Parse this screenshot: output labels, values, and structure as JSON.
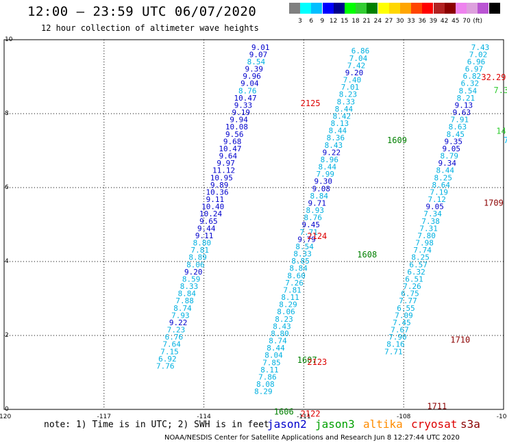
{
  "title": "12:00 – 23:59 UTC 06/07/2020",
  "subtitle": "12 hour collection of altimeter wave heights",
  "scale": {
    "colors": [
      "#808080",
      "#00ffff",
      "#00bfff",
      "#0000ff",
      "#00008b",
      "#00ff00",
      "#32cd32",
      "#008000",
      "#ffff00",
      "#ffd700",
      "#ffa500",
      "#ff4500",
      "#ff0000",
      "#b22222",
      "#8b0000",
      "#ee82ee",
      "#dda0dd",
      "#ba55d3",
      "#000000"
    ],
    "labels": [
      "3",
      "6",
      "9",
      "12",
      "15",
      "18",
      "21",
      "24",
      "27",
      "30",
      "33",
      "36",
      "39",
      "42",
      "45",
      "70",
      "(ft)"
    ],
    "unit": "(ft)"
  },
  "x_ticks": [
    "-120",
    "-117",
    "-114",
    "-111",
    "-108",
    "-105"
  ],
  "y_ticks": [
    "0",
    "2",
    "4",
    "6",
    "8",
    "10"
  ],
  "note": "note: 1) Time is in UTC; 2) SWH is in feet",
  "satellites": [
    {
      "name": "jason2",
      "color": "#0000cc"
    },
    {
      "name": "jason3",
      "color": "#00a000"
    },
    {
      "name": "altika",
      "color": "#ff8c00"
    },
    {
      "name": "cryosat",
      "color": "#dd0000"
    },
    {
      "name": "s3a",
      "color": "#8b0000"
    }
  ],
  "footer": "NOAA/NESDIS Center for Satellite Applications and Research   Jun  8 12:27:44 UTC 2020",
  "tracks": [
    {
      "lon": -112.3,
      "lat_top": 9.8,
      "lat_step": -0.196,
      "values": [
        "9.01",
        "9.07",
        "8.54",
        "9.39",
        "9.96",
        "9.04",
        "8.76",
        "10.47",
        "9.33",
        "9.19",
        "9.94",
        "10.08",
        "9.56",
        "9.68",
        "10.47",
        "9.64",
        "9.97",
        "11.12",
        "10.95",
        "9.89",
        "10.36",
        "9.11",
        "10.40",
        "10.24",
        "9.65",
        "9.44",
        "9.11",
        "8.80",
        "7.81",
        "8.89",
        "8.06",
        "9.20",
        "8.59",
        "8.33",
        "8.84",
        "7.88",
        "8.74",
        "7.93",
        "9.22",
        "7.23",
        "6.76",
        "7.64",
        "7.15",
        "6.92",
        "7.76"
      ],
      "lon_step": -0.065
    },
    {
      "lon": -109.3,
      "lat_top": 9.7,
      "lat_step": -0.196,
      "values": [
        "6.86",
        "7.04",
        "7.42",
        "9.20",
        "7.40",
        "7.01",
        "8.23",
        "8.33",
        "8.44",
        "8.42",
        "8.13",
        "8.44",
        "8.36",
        "8.43",
        "9.22",
        "8.96",
        "8.44",
        "7.99",
        "9.30",
        "9.08",
        "8.84",
        "9.71",
        "8.93",
        "8.76",
        "9.45",
        "7.71",
        "9.79",
        "8.54",
        "8.33",
        "8.85",
        "8.84",
        "8.60",
        "7.26",
        "7.81",
        "8.11",
        "8.29",
        "8.06",
        "8.23",
        "8.43",
        "8.80",
        "8.74",
        "8.44",
        "8.04",
        "7.85",
        "8.11",
        "7.86",
        "8.08",
        "8.29"
      ],
      "lon_step": -0.062
    },
    {
      "lon": -105.7,
      "lat_top": 9.8,
      "lat_step": -0.196,
      "values": [
        "7.43",
        "7.02",
        "6.96",
        "6.97",
        "6.82",
        "6.32",
        "8.54",
        "8.21",
        "9.13",
        "9.63",
        "7.91",
        "8.63",
        "8.45",
        "9.35",
        "9.05",
        "8.79",
        "9.34",
        "8.44",
        "8.25",
        "8.64",
        "7.19",
        "7.12",
        "9.05",
        "7.34",
        "7.38",
        "7.31",
        "7.80",
        "7.98",
        "7.74",
        "8.25",
        "6.57",
        "6.32",
        "6.51",
        "7.26",
        "6.75",
        "7.77",
        "6.55",
        "7.09",
        "7.45",
        "7.67",
        "7.90",
        "8.16",
        "7.71"
      ],
      "lon_step": -0.062
    }
  ],
  "time_labels": [
    {
      "text": "2125",
      "lon": -110.8,
      "lat": 8.3,
      "color": "#dd0000"
    },
    {
      "text": "1609",
      "lon": -108.2,
      "lat": 7.3,
      "color": "#008000"
    },
    {
      "text": "2124",
      "lon": -110.6,
      "lat": 4.7,
      "color": "#dd0000"
    },
    {
      "text": "1608",
      "lon": -109.1,
      "lat": 4.2,
      "color": "#008000"
    },
    {
      "text": "1709",
      "lon": -105.3,
      "lat": 5.6,
      "color": "#8b0000"
    },
    {
      "text": "1710",
      "lon": -106.3,
      "lat": 1.9,
      "color": "#8b0000"
    },
    {
      "text": "1607",
      "lon": -110.9,
      "lat": 1.35,
      "color": "#008000"
    },
    {
      "text": "2123",
      "lon": -110.6,
      "lat": 1.3,
      "color": "#dd0000"
    },
    {
      "text": "1711",
      "lon": -107.0,
      "lat": 0.1,
      "color": "#8b0000"
    },
    {
      "text": "1606",
      "lon": -111.6,
      "lat": -0.05,
      "color": "#008000"
    },
    {
      "text": "2122",
      "lon": -110.8,
      "lat": -0.1,
      "color": "#dd0000"
    },
    {
      "text": "32.29",
      "lon": -105.3,
      "lat": 9.0,
      "color": "#dd0000"
    },
    {
      "text": "1",
      "lon": -104.85,
      "lat": 9.0,
      "color": "#dd0000"
    },
    {
      "text": "14.80",
      "lon": -104.85,
      "lat": 7.55,
      "color": "#32cd32"
    },
    {
      "text": "7.20",
      "lon": -104.7,
      "lat": 7.3,
      "color": "#00bfff"
    },
    {
      "text": "7.30",
      "lon": -105.0,
      "lat": 8.65,
      "color": "#32cd32"
    }
  ]
}
